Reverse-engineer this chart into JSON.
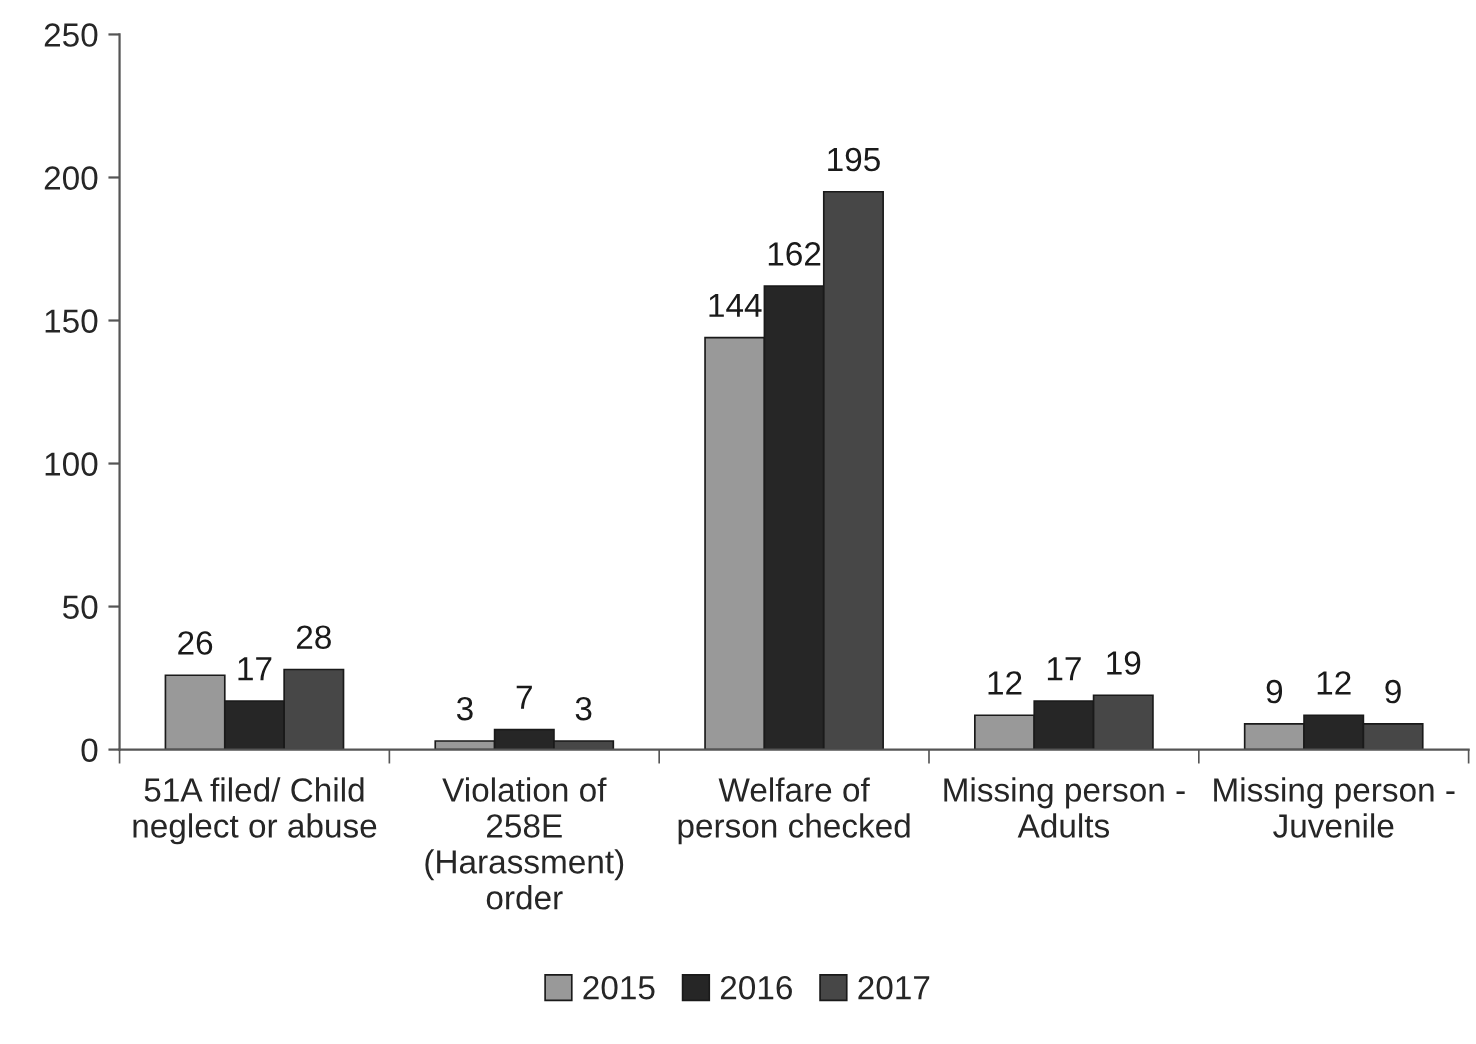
{
  "chart_data": {
    "type": "bar",
    "categories": [
      "51A filed/ Child\nneglect or abuse",
      "Violation of\n258E\n(Harassment)\norder",
      "Welfare of\nperson checked",
      "Missing person -\nAdults",
      "Missing person -\nJuvenile"
    ],
    "series": [
      {
        "name": "2015",
        "color": "#999999",
        "values": [
          26,
          3,
          144,
          12,
          9
        ]
      },
      {
        "name": "2016",
        "color": "#262626",
        "values": [
          17,
          7,
          162,
          17,
          12
        ]
      },
      {
        "name": "2017",
        "color": "#474747",
        "values": [
          28,
          3,
          195,
          19,
          9
        ]
      }
    ],
    "ylim": [
      0,
      250
    ],
    "yticks": [
      0,
      50,
      100,
      150,
      200,
      250
    ],
    "data_labels": true,
    "legend": "bottom",
    "grid": false
  }
}
